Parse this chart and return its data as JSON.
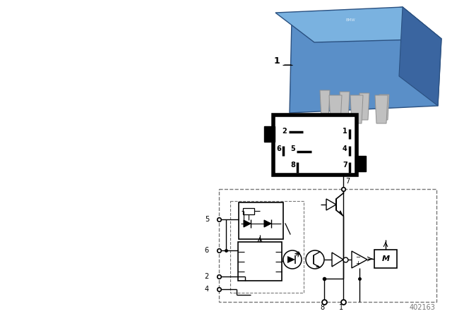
{
  "bg_color": "#ffffff",
  "diagram_id": "402163",
  "black": "#000000",
  "gray": "#777777",
  "lgray": "#aaaaaa",
  "blue_relay": "#5a8fc8",
  "blue_relay_top": "#7ab2e0",
  "blue_relay_right": "#3a65a0",
  "blue_relay_bottom": "#4a80b8",
  "pin_color": "#c0c0c0",
  "pin_edge": "#909090"
}
